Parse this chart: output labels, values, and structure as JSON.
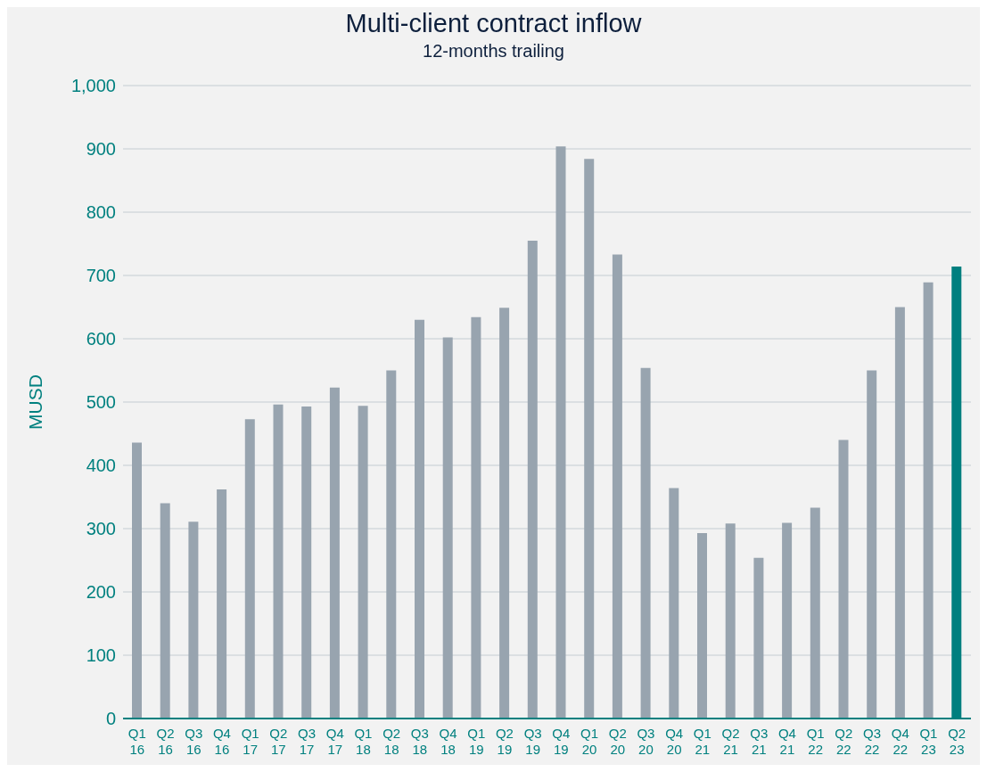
{
  "chart_data": {
    "type": "bar",
    "title": "Multi-client contract inflow",
    "subtitle": "12-months trailing",
    "ylabel": "MUSD",
    "categories": [
      "Q1\n16",
      "Q2\n16",
      "Q3\n16",
      "Q4\n16",
      "Q1\n17",
      "Q2\n17",
      "Q3\n17",
      "Q4\n17",
      "Q1\n18",
      "Q2\n18",
      "Q3\n18",
      "Q4\n18",
      "Q1\n19",
      "Q2\n19",
      "Q3\n19",
      "Q4\n19",
      "Q1\n20",
      "Q2\n20",
      "Q3\n20",
      "Q4\n20",
      "Q1\n21",
      "Q2\n21",
      "Q3\n21",
      "Q4\n21",
      "Q1\n22",
      "Q2\n22",
      "Q3\n22",
      "Q4\n22",
      "Q1\n23",
      "Q2\n23"
    ],
    "values": [
      436,
      340,
      311,
      362,
      473,
      496,
      493,
      523,
      494,
      550,
      630,
      602,
      634,
      649,
      755,
      904,
      884,
      733,
      554,
      364,
      293,
      308,
      254,
      309,
      333,
      440,
      550,
      650,
      689,
      714
    ],
    "colors": [
      "#98a4af",
      "#98a4af",
      "#98a4af",
      "#98a4af",
      "#98a4af",
      "#98a4af",
      "#98a4af",
      "#98a4af",
      "#98a4af",
      "#98a4af",
      "#98a4af",
      "#98a4af",
      "#98a4af",
      "#98a4af",
      "#98a4af",
      "#98a4af",
      "#98a4af",
      "#98a4af",
      "#98a4af",
      "#98a4af",
      "#98a4af",
      "#98a4af",
      "#98a4af",
      "#98a4af",
      "#98a4af",
      "#98a4af",
      "#98a4af",
      "#98a4af",
      "#98a4af",
      "#007f7f"
    ],
    "ylim": [
      0,
      1000
    ],
    "yticks": [
      0,
      100,
      200,
      300,
      400,
      500,
      600,
      700,
      800,
      900,
      {
        "value": 1000,
        "label": "1,000"
      }
    ],
    "grid": "y",
    "legend": false
  }
}
